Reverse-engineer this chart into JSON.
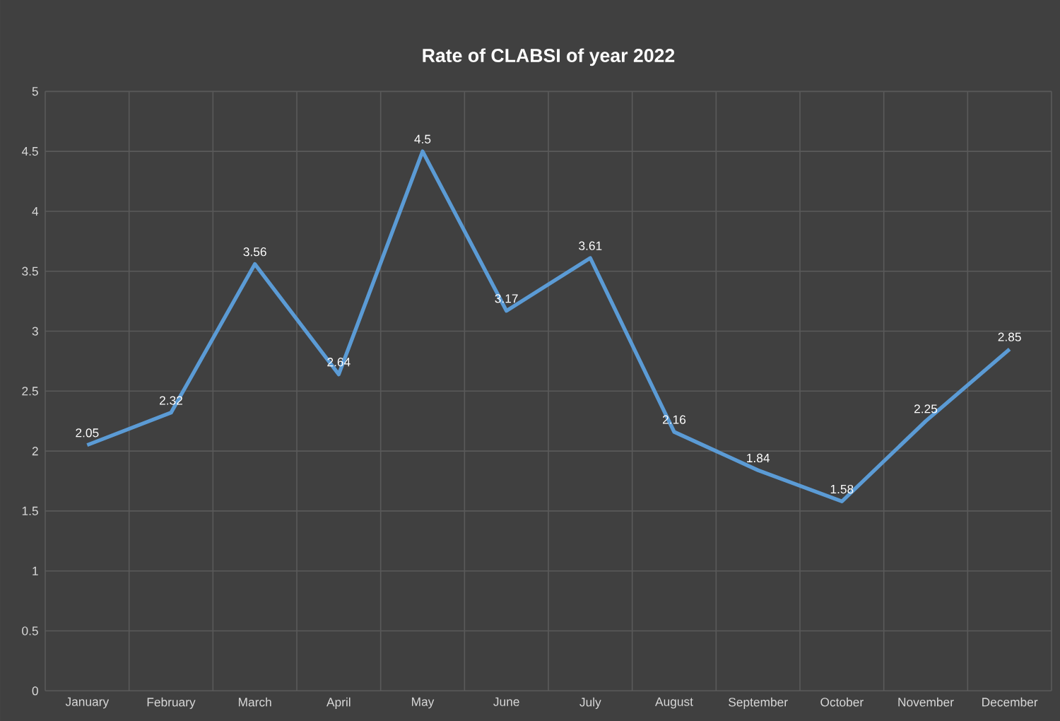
{
  "chart_data": {
    "type": "line",
    "title": "Rate of CLABSI of year 2022",
    "categories": [
      "January",
      "February",
      "March",
      "April",
      "May",
      "June",
      "July",
      "August",
      "September",
      "October",
      "November",
      "December"
    ],
    "series": [
      {
        "color": "#5b9bd5",
        "values": [
          2.05,
          2.32,
          3.56,
          2.64,
          4.5,
          3.17,
          3.61,
          2.16,
          1.84,
          1.58,
          2.25,
          2.85
        ]
      }
    ],
    "ylim": [
      0,
      5
    ],
    "yticks": [
      0,
      0.5,
      1,
      1.5,
      2,
      2.5,
      3,
      3.5,
      4,
      4.5,
      5
    ],
    "grid": true,
    "data_labels": true,
    "marker": "none",
    "line_style": "solid"
  }
}
